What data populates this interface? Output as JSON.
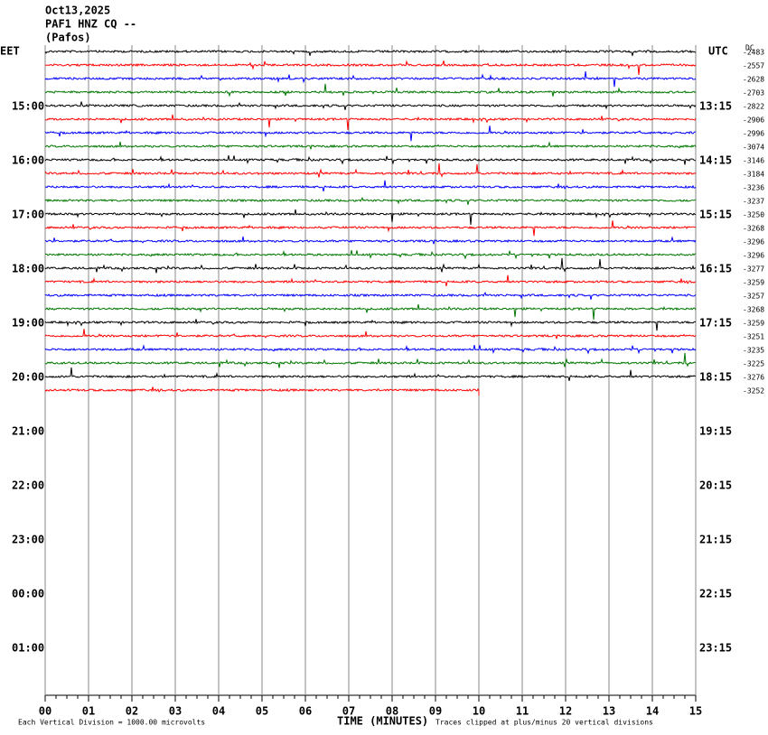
{
  "chart_data": {
    "type": "helicorder",
    "header": [
      "Oct13,2025",
      "PAF1 HNZ CQ --",
      "(Pafos)"
    ],
    "left_title": "EET",
    "right_title": "UTC",
    "dc_title": "DC",
    "eet_labels": [
      "15:00",
      "16:00",
      "17:00",
      "18:00",
      "19:00",
      "20:00",
      "21:00",
      "22:00",
      "23:00",
      "00:00",
      "01:00"
    ],
    "utc_labels": [
      "13:15",
      "14:15",
      "15:15",
      "16:15",
      "17:15",
      "18:15",
      "19:15",
      "20:15",
      "21:15",
      "22:15",
      "23:15"
    ],
    "colors": [
      "#000000",
      "#ff0000",
      "#0000ff",
      "#007700"
    ],
    "traces": [
      {
        "dc": -2483
      },
      {
        "dc": -2557
      },
      {
        "dc": -2628
      },
      {
        "dc": -2703
      },
      {
        "dc": -2822
      },
      {
        "dc": -2906
      },
      {
        "dc": -2996
      },
      {
        "dc": -3074
      },
      {
        "dc": -3146
      },
      {
        "dc": -3184
      },
      {
        "dc": -3236
      },
      {
        "dc": -3237
      },
      {
        "dc": -3250
      },
      {
        "dc": -3268
      },
      {
        "dc": -3296
      },
      {
        "dc": -3296
      },
      {
        "dc": -3277
      },
      {
        "dc": -3259
      },
      {
        "dc": -3257
      },
      {
        "dc": -3268
      },
      {
        "dc": -3259
      },
      {
        "dc": -3251
      },
      {
        "dc": -3235
      },
      {
        "dc": -3225
      },
      {
        "dc": -3276
      },
      {
        "dc": -3252,
        "end": 10
      }
    ],
    "xlim": [
      0,
      15
    ],
    "xticks": [
      {
        "value": 0,
        "label": "00"
      },
      {
        "value": 1,
        "label": "01"
      },
      {
        "value": 2,
        "label": "02"
      },
      {
        "value": 3,
        "label": "03"
      },
      {
        "value": 4,
        "label": "04"
      },
      {
        "value": 5,
        "label": "05"
      },
      {
        "value": 6,
        "label": "06"
      },
      {
        "value": 7,
        "label": "07"
      },
      {
        "value": 8,
        "label": "08"
      },
      {
        "value": 9,
        "label": "09"
      },
      {
        "value": 10,
        "label": "10"
      },
      {
        "value": 11,
        "label": "11"
      },
      {
        "value": 12,
        "label": "12"
      },
      {
        "value": 13,
        "label": "13"
      },
      {
        "value": 14,
        "label": "14"
      },
      {
        "value": 15,
        "label": "15"
      }
    ],
    "x_label": "TIME (MINUTES)",
    "scale_note": "Each Vertical Division = 1000.00 microvolts",
    "clip_note": "Traces clipped at plus/minus 20 vertical divisions"
  }
}
